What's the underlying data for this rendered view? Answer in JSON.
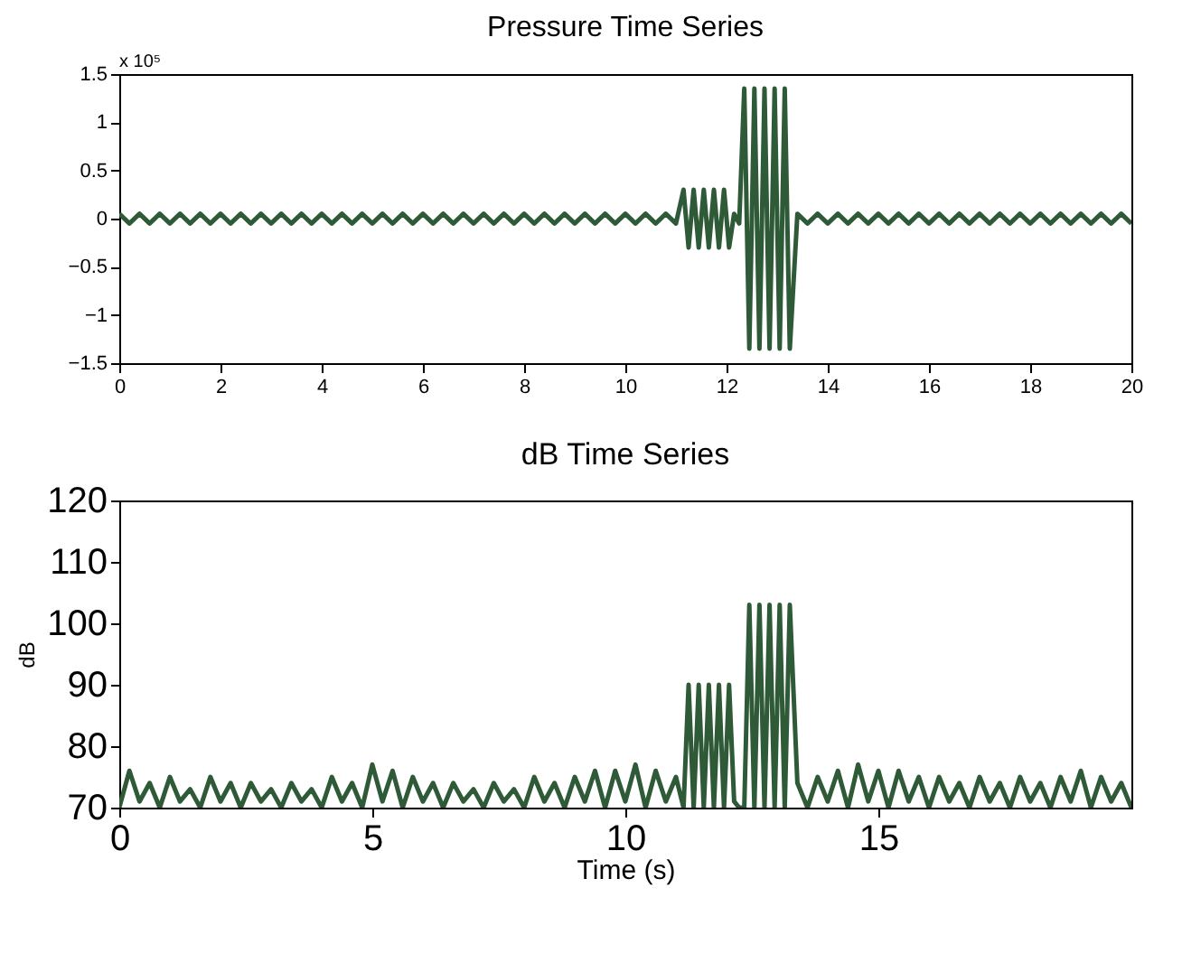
{
  "chart_data": [
    {
      "type": "line",
      "title": "Pressure Time Series",
      "xlim": [
        0,
        20
      ],
      "xticks": [
        0,
        2,
        4,
        6,
        8,
        10,
        12,
        14,
        16,
        18,
        20
      ],
      "ylim": [
        -1.5,
        1.5
      ],
      "yticks": [
        -1.5,
        -1,
        -0.5,
        0,
        0.5,
        1,
        1.5
      ],
      "annotations": [
        "x 10⁵"
      ],
      "marker": "none",
      "line_style": "solid",
      "series": [
        {
          "color": "#2f5a37",
          "x": [
            0,
            0.2,
            0.4,
            0.6,
            0.8,
            1,
            1.2,
            1.4,
            1.6,
            1.8,
            2,
            2.2,
            2.4,
            2.6,
            2.8,
            3,
            3.2,
            3.4,
            3.6,
            3.8,
            4,
            4.2,
            4.4,
            4.6,
            4.8,
            5,
            5.2,
            5.4,
            5.6,
            5.8,
            6,
            6.2,
            6.4,
            6.6,
            6.8,
            7,
            7.2,
            7.4,
            7.6,
            7.8,
            8,
            8.2,
            8.4,
            8.6,
            8.8,
            9,
            9.2,
            9.4,
            9.6,
            9.8,
            10,
            10.2,
            10.4,
            10.6,
            10.8,
            11,
            11.15,
            11.25,
            11.35,
            11.45,
            11.55,
            11.65,
            11.75,
            11.85,
            11.95,
            12.05,
            12.15,
            12.25,
            12.35,
            12.45,
            12.55,
            12.65,
            12.75,
            12.85,
            12.95,
            13.05,
            13.15,
            13.25,
            13.4,
            13.6,
            13.8,
            14,
            14.2,
            14.4,
            14.6,
            14.8,
            15,
            15.2,
            15.4,
            15.6,
            15.8,
            16,
            16.2,
            16.4,
            16.6,
            16.8,
            17,
            17.2,
            17.4,
            17.6,
            17.8,
            18,
            18.2,
            18.4,
            18.6,
            18.8,
            19,
            19.2,
            19.4,
            19.6,
            19.8,
            20
          ],
          "values": [
            0.05,
            -0.05,
            0.05,
            -0.05,
            0.05,
            -0.05,
            0.05,
            -0.05,
            0.05,
            -0.05,
            0.05,
            -0.05,
            0.05,
            -0.05,
            0.05,
            -0.05,
            0.05,
            -0.05,
            0.05,
            -0.05,
            0.05,
            -0.05,
            0.05,
            -0.05,
            0.05,
            -0.05,
            0.05,
            -0.05,
            0.05,
            -0.05,
            0.05,
            -0.05,
            0.05,
            -0.05,
            0.05,
            -0.05,
            0.05,
            -0.05,
            0.05,
            -0.05,
            0.05,
            -0.05,
            0.05,
            -0.05,
            0.05,
            -0.05,
            0.05,
            -0.05,
            0.05,
            -0.05,
            0.05,
            -0.05,
            0.05,
            -0.05,
            0.05,
            -0.05,
            0.3,
            -0.3,
            0.3,
            -0.3,
            0.3,
            -0.3,
            0.3,
            -0.3,
            0.3,
            -0.3,
            0.05,
            -0.05,
            1.35,
            -1.35,
            1.35,
            -1.35,
            1.35,
            -1.35,
            1.35,
            -1.35,
            1.35,
            -1.35,
            0.05,
            -0.05,
            0.05,
            -0.05,
            0.05,
            -0.05,
            0.05,
            -0.05,
            0.05,
            -0.05,
            0.05,
            -0.05,
            0.05,
            -0.05,
            0.05,
            -0.05,
            0.05,
            -0.05,
            0.05,
            -0.05,
            0.05,
            -0.05,
            0.05,
            -0.05,
            0.05,
            -0.05,
            0.05,
            -0.05,
            0.05,
            -0.05,
            0.05,
            -0.05,
            0.05,
            -0.05
          ]
        }
      ]
    },
    {
      "type": "line",
      "title": "dB Time Series",
      "xlabel": "Time (s)",
      "ylabel": "dB",
      "xlim": [
        0,
        20
      ],
      "xticks": [
        0,
        5,
        10,
        15
      ],
      "ylim": [
        70,
        120
      ],
      "yticks": [
        70,
        80,
        90,
        100,
        110,
        120
      ],
      "marker": "none",
      "line_style": "solid",
      "series": [
        {
          "color": "#2f5a37",
          "x": [
            0,
            0.2,
            0.4,
            0.6,
            0.8,
            1,
            1.2,
            1.4,
            1.6,
            1.8,
            2,
            2.2,
            2.4,
            2.6,
            2.8,
            3,
            3.2,
            3.4,
            3.6,
            3.8,
            4,
            4.2,
            4.4,
            4.6,
            4.8,
            5,
            5.2,
            5.4,
            5.6,
            5.8,
            6,
            6.2,
            6.4,
            6.6,
            6.8,
            7,
            7.2,
            7.4,
            7.6,
            7.8,
            8,
            8.2,
            8.4,
            8.6,
            8.8,
            9,
            9.2,
            9.4,
            9.6,
            9.8,
            10,
            10.2,
            10.4,
            10.6,
            10.8,
            11,
            11.15,
            11.25,
            11.35,
            11.45,
            11.55,
            11.65,
            11.75,
            11.85,
            11.95,
            12.05,
            12.15,
            12.25,
            12.35,
            12.45,
            12.55,
            12.65,
            12.75,
            12.85,
            12.95,
            13.05,
            13.15,
            13.25,
            13.4,
            13.6,
            13.8,
            14,
            14.2,
            14.4,
            14.6,
            14.8,
            15,
            15.2,
            15.4,
            15.6,
            15.8,
            16,
            16.2,
            16.4,
            16.6,
            16.8,
            17,
            17.2,
            17.4,
            17.6,
            17.8,
            18,
            18.2,
            18.4,
            18.6,
            18.8,
            19,
            19.2,
            19.4,
            19.6,
            19.8,
            20
          ],
          "values": [
            70,
            76,
            71,
            74,
            70,
            75,
            71,
            73,
            70,
            75,
            71,
            74,
            70,
            74,
            71,
            73,
            70,
            74,
            71,
            73,
            70,
            75,
            71,
            74,
            70,
            77,
            71,
            76,
            70,
            75,
            71,
            74,
            70,
            74,
            71,
            73,
            70,
            74,
            71,
            73,
            70,
            75,
            71,
            74,
            70,
            75,
            71,
            76,
            70,
            76,
            71,
            77,
            70,
            76,
            71,
            75,
            70,
            90,
            70,
            90,
            70,
            90,
            70,
            90,
            70,
            90,
            71,
            70,
            70,
            103,
            70,
            103,
            70,
            103,
            70,
            103,
            70,
            103,
            74,
            70,
            75,
            71,
            76,
            70,
            77,
            71,
            76,
            70,
            76,
            71,
            75,
            70,
            75,
            71,
            74,
            70,
            75,
            71,
            74,
            70,
            75,
            71,
            74,
            70,
            75,
            71,
            76,
            70,
            75,
            71,
            74,
            70
          ]
        }
      ]
    }
  ]
}
